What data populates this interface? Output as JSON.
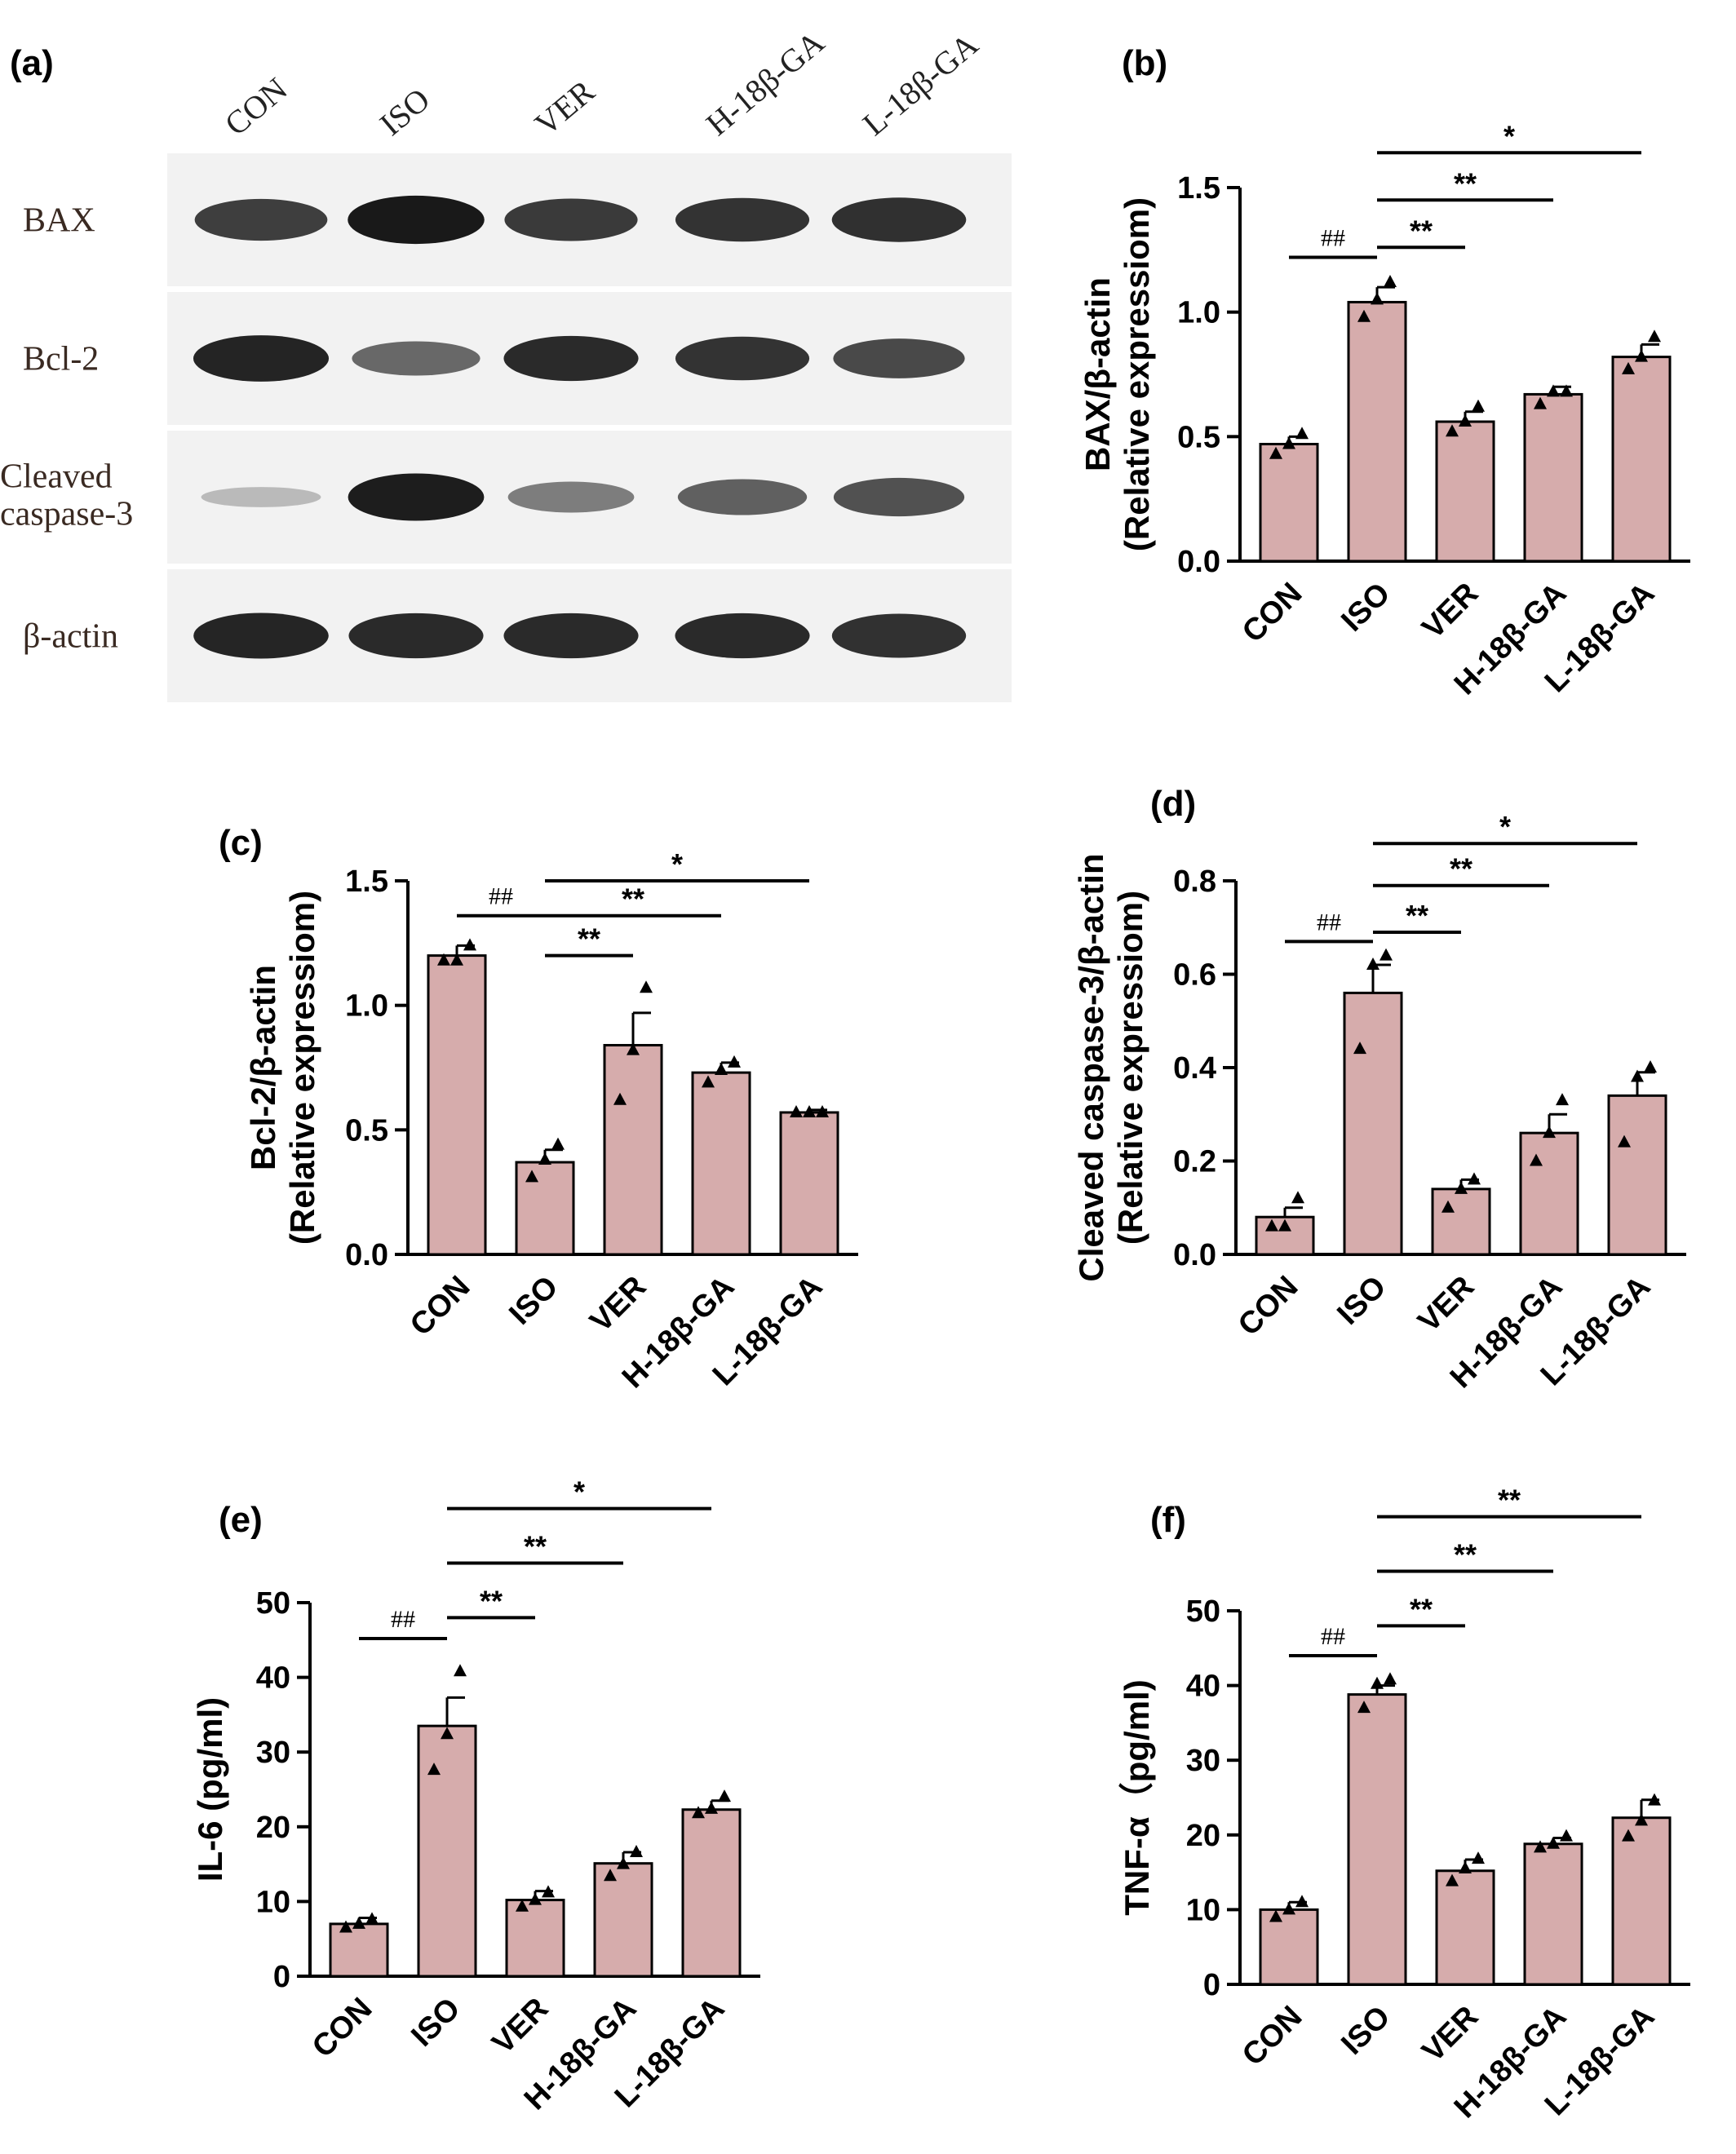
{
  "blot": {
    "panel_label": "(a)",
    "lanes": [
      "CON",
      "ISO",
      "VER",
      "H-18β-GA",
      "L-18β-GA"
    ],
    "rows": [
      {
        "label_lines": [
          "BAX"
        ],
        "intensities": [
          0.78,
          0.98,
          0.8,
          0.84,
          0.86
        ]
      },
      {
        "label_lines": [
          "Bcl-2"
        ],
        "intensities": [
          0.92,
          0.55,
          0.88,
          0.84,
          0.72
        ]
      },
      {
        "label_lines": [
          "Cleaved",
          "caspase-3"
        ],
        "intensities": [
          0.12,
          0.95,
          0.45,
          0.6,
          0.68
        ]
      },
      {
        "label_lines": [
          "β-actin"
        ],
        "intensities": [
          0.9,
          0.88,
          0.88,
          0.88,
          0.85
        ]
      }
    ],
    "colors": {
      "background": "#f2f2f2",
      "band": "#141414"
    }
  },
  "chart_data": [
    {
      "panel": "(b)",
      "type": "bar",
      "categories": [
        "CON",
        "ISO",
        "VER",
        "H-18β-GA",
        "L-18β-GA"
      ],
      "values": [
        0.47,
        1.04,
        0.56,
        0.67,
        0.82
      ],
      "errors": [
        0.03,
        0.06,
        0.04,
        0.03,
        0.05
      ],
      "points": [
        [
          0.43,
          0.47,
          0.51
        ],
        [
          0.98,
          1.05,
          1.12
        ],
        [
          0.52,
          0.56,
          0.62
        ],
        [
          0.63,
          0.68,
          0.68
        ],
        [
          0.77,
          0.82,
          0.9
        ]
      ],
      "ylabel_lines": [
        "BAX/β-actin",
        "(Relative expressiom)"
      ],
      "ylim": [
        0,
        1.5
      ],
      "yticks": [
        "0.0",
        "0.5",
        "1.0",
        "1.5"
      ],
      "annotations": [
        {
          "from": 0,
          "to": 1,
          "text": "##",
          "y": 1.22
        },
        {
          "from": 1,
          "to": 2,
          "text": "**",
          "y": 1.26
        },
        {
          "from": 1,
          "to": 3,
          "text": "**",
          "y": 1.45
        },
        {
          "from": 1,
          "to": 4,
          "text": "*",
          "y": 1.64
        }
      ]
    },
    {
      "panel": "(c)",
      "type": "bar",
      "categories": [
        "CON",
        "ISO",
        "VER",
        "H-18β-GA",
        "L-18β-GA"
      ],
      "values": [
        1.2,
        0.37,
        0.84,
        0.73,
        0.57
      ],
      "errors": [
        0.04,
        0.05,
        0.13,
        0.04,
        0.01
      ],
      "points": [
        [
          1.18,
          1.18,
          1.24
        ],
        [
          0.31,
          0.38,
          0.44
        ],
        [
          0.62,
          0.82,
          1.07
        ],
        [
          0.69,
          0.74,
          0.77
        ],
        [
          0.57,
          0.57,
          0.57
        ]
      ],
      "ylabel_lines": [
        "Bcl-2/β-actin",
        "(Relative expressiom)"
      ],
      "ylim": [
        0,
        1.5
      ],
      "yticks": [
        "0.0",
        "0.5",
        "1.0",
        "1.5"
      ],
      "annotations": [
        {
          "from": 0,
          "to": 1,
          "text": "##",
          "y": 1.36
        },
        {
          "from": 1,
          "to": 2,
          "text": "**",
          "y": 1.2
        },
        {
          "from": 1,
          "to": 3,
          "text": "**",
          "y": 1.36
        },
        {
          "from": 1,
          "to": 4,
          "text": "*",
          "y": 1.5
        }
      ]
    },
    {
      "panel": "(d)",
      "type": "bar",
      "categories": [
        "CON",
        "ISO",
        "VER",
        "H-18β-GA",
        "L-18β-GA"
      ],
      "values": [
        0.08,
        0.56,
        0.14,
        0.26,
        0.34
      ],
      "errors": [
        0.02,
        0.06,
        0.02,
        0.04,
        0.05
      ],
      "points": [
        [
          0.06,
          0.06,
          0.12
        ],
        [
          0.44,
          0.62,
          0.64
        ],
        [
          0.1,
          0.14,
          0.16
        ],
        [
          0.2,
          0.26,
          0.33
        ],
        [
          0.24,
          0.38,
          0.4
        ]
      ],
      "ylabel_lines": [
        "Cleaved caspase-3/β-actin",
        "(Relative expressiom)"
      ],
      "ylim": [
        0,
        0.8
      ],
      "yticks": [
        "0.0",
        "0.2",
        "0.4",
        "0.6",
        "0.8"
      ],
      "annotations": [
        {
          "from": 0,
          "to": 1,
          "text": "##",
          "y": 0.67
        },
        {
          "from": 1,
          "to": 2,
          "text": "**",
          "y": 0.69
        },
        {
          "from": 1,
          "to": 3,
          "text": "**",
          "y": 0.79
        },
        {
          "from": 1,
          "to": 4,
          "text": "*",
          "y": 0.88
        }
      ]
    },
    {
      "panel": "(e)",
      "type": "bar",
      "categories": [
        "CON",
        "ISO",
        "VER",
        "H-18β-GA",
        "L-18β-GA"
      ],
      "values": [
        7,
        33.5,
        10.2,
        15.1,
        22.3
      ],
      "errors": [
        0.8,
        3.8,
        1.2,
        1.5,
        1.2
      ],
      "points": [
        [
          6.5,
          7,
          7.6
        ],
        [
          27.6,
          32.4,
          40.8
        ],
        [
          9.3,
          10.2,
          11.2
        ],
        [
          13.4,
          15,
          16.6
        ],
        [
          21.8,
          22.4,
          24
        ]
      ],
      "ylabel_lines": [
        "IL-6 (pg/ml)"
      ],
      "ylim": [
        0,
        50
      ],
      "yticks": [
        "0",
        "10",
        "20",
        "30",
        "40",
        "50"
      ],
      "annotations": [
        {
          "from": 0,
          "to": 1,
          "text": "##",
          "y": 45.2
        },
        {
          "from": 1,
          "to": 2,
          "text": "**",
          "y": 48
        },
        {
          "from": 1,
          "to": 3,
          "text": "**",
          "y": 55.3
        },
        {
          "from": 1,
          "to": 4,
          "text": "*",
          "y": 62.6
        }
      ]
    },
    {
      "panel": "(f)",
      "type": "bar",
      "categories": [
        "CON",
        "ISO",
        "VER",
        "H-18β-GA",
        "L-18β-GA"
      ],
      "values": [
        10,
        38.8,
        15.2,
        18.8,
        22.3
      ],
      "errors": [
        1,
        1.2,
        1.5,
        0.8,
        2.4
      ],
      "points": [
        [
          9,
          10,
          11
        ],
        [
          37,
          40.2,
          40.8
        ],
        [
          13.8,
          15.5,
          16.8
        ],
        [
          18.3,
          18.8,
          19.8
        ],
        [
          19.8,
          21.9,
          24.6
        ]
      ],
      "ylabel_lines": [
        "TNF-α（pg/ml)"
      ],
      "ylim": [
        0,
        50
      ],
      "yticks": [
        "0",
        "10",
        "20",
        "30",
        "40",
        "50"
      ],
      "annotations": [
        {
          "from": 0,
          "to": 1,
          "text": "##",
          "y": 44
        },
        {
          "from": 1,
          "to": 2,
          "text": "**",
          "y": 48
        },
        {
          "from": 1,
          "to": 3,
          "text": "**",
          "y": 55.3
        },
        {
          "from": 1,
          "to": 4,
          "text": "**",
          "y": 62.6
        }
      ]
    }
  ],
  "colors": {
    "bar": "#d6acac",
    "bar_edge": "#000000",
    "marker": "#000000"
  }
}
